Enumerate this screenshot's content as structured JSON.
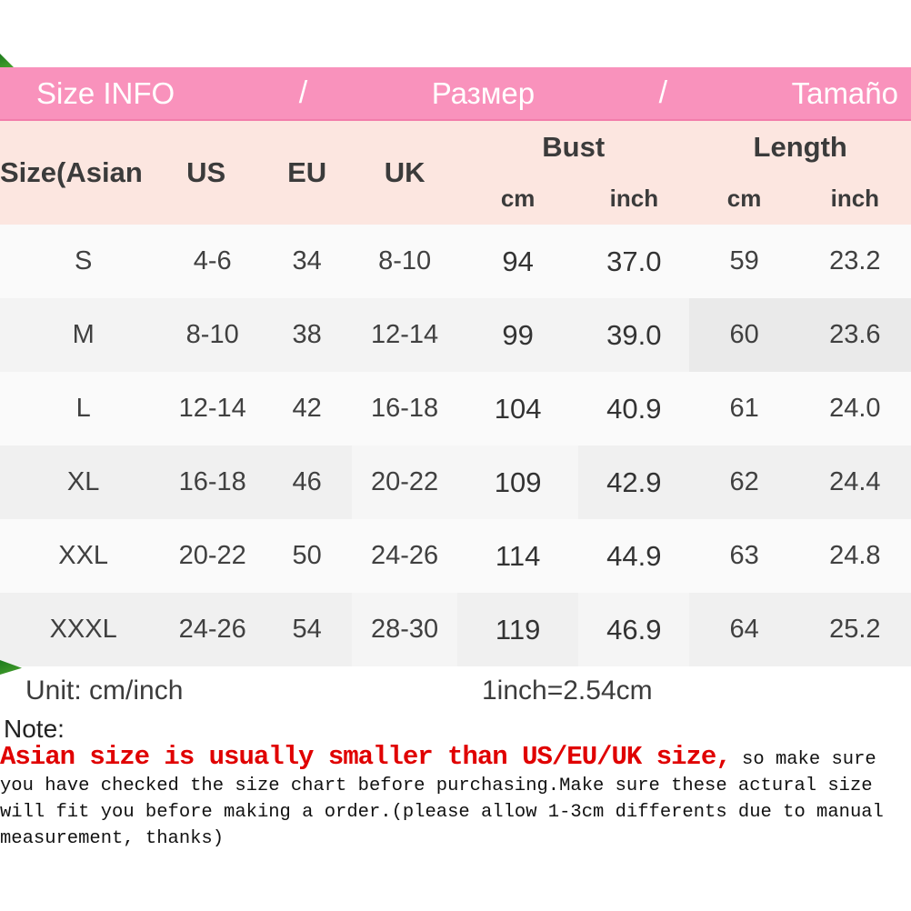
{
  "banner": {
    "title_en": "Size INFO",
    "separator": "/",
    "title_ru": "Размер",
    "title_es": "Tamaño"
  },
  "table": {
    "col_headers": {
      "size": "Size(Asian",
      "us": "US",
      "eu": "EU",
      "uk": "UK",
      "bust": "Bust",
      "length": "Length",
      "cm": "cm",
      "inch": "inch"
    },
    "rows": [
      {
        "size": "S",
        "us": "4-6",
        "eu": "34",
        "uk": "8-10",
        "bust_cm": "94",
        "bust_inch": "37.0",
        "len_cm": "59",
        "len_inch": "23.2"
      },
      {
        "size": "M",
        "us": "8-10",
        "eu": "38",
        "uk": "12-14",
        "bust_cm": "99",
        "bust_inch": "39.0",
        "len_cm": "60",
        "len_inch": "23.6"
      },
      {
        "size": "L",
        "us": "12-14",
        "eu": "42",
        "uk": "16-18",
        "bust_cm": "104",
        "bust_inch": "40.9",
        "len_cm": "61",
        "len_inch": "24.0"
      },
      {
        "size": "XL",
        "us": "16-18",
        "eu": "46",
        "uk": "20-22",
        "bust_cm": "109",
        "bust_inch": "42.9",
        "len_cm": "62",
        "len_inch": "24.4"
      },
      {
        "size": "XXL",
        "us": "20-22",
        "eu": "50",
        "uk": "24-26",
        "bust_cm": "114",
        "bust_inch": "44.9",
        "len_cm": "63",
        "len_inch": "24.8"
      },
      {
        "size": "XXXL",
        "us": "24-26",
        "eu": "54",
        "uk": "28-30",
        "bust_cm": "119",
        "bust_inch": "46.9",
        "len_cm": "64",
        "len_inch": "25.2"
      }
    ]
  },
  "footer": {
    "unit_label": "Unit: cm/inch",
    "conversion": "1inch=2.54cm",
    "note_label": "Note:",
    "note_red": "Asian size is usually smaller than US/EU/UK size,",
    "note_black": " so make sure you have checked the size chart before purchasing.Make sure these actural size will fit you before making a order.(please allow 1-3cm differents due to manual measurement, thanks)"
  },
  "colors": {
    "banner_pink": "#f992bc",
    "header_pink": "#fce6e0",
    "note_red": "#e00000",
    "ribbon_green": "#2d8a2d"
  }
}
